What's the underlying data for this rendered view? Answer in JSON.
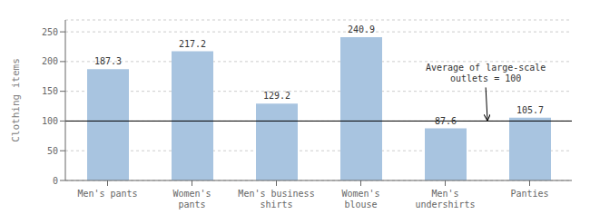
{
  "chart_data": {
    "type": "bar",
    "categories": [
      "Men's pants",
      "Women's\npants",
      "Men's business\nshirts",
      "Women's\nblouse",
      "Men's\nundershirts",
      "Panties"
    ],
    "values": [
      187.3,
      217.2,
      129.2,
      240.9,
      87.6,
      105.7
    ],
    "color": "#a8c4e0",
    "ylabel": "Clothing items",
    "ylim": [
      0,
      270
    ],
    "yticks": [
      0,
      50,
      100,
      150,
      200,
      250
    ],
    "grid": true,
    "data_labels": true,
    "reference_line": 100,
    "annotation": "Average of large-scale\noutlets = 100"
  }
}
